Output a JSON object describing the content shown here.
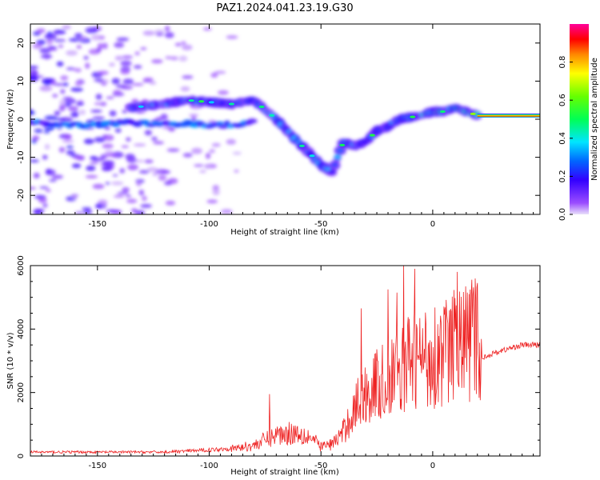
{
  "title": "PAZ1.2024.041.23.19.G30",
  "chart_data": [
    {
      "type": "heatmap",
      "xlabel": "Height of straight line (km)",
      "ylabel": "Frequency (Hz)",
      "xlim": [
        -180,
        48
      ],
      "ylim": [
        -25,
        25
      ],
      "xticks": [
        -150,
        -100,
        -50,
        0
      ],
      "yticks": [
        -20,
        -10,
        0,
        10,
        20
      ],
      "colorbar": {
        "label": "Normalized spectral amplitude",
        "range": [
          0,
          1
        ],
        "ticks": [
          0.0,
          0.2,
          0.4,
          0.6,
          0.8
        ],
        "colormap": "rainbow-violet-to-pink"
      },
      "ridge": {
        "description": "dominant spectral component (frequency vs height)",
        "x": [
          -135,
          -120,
          -110,
          -100,
          -90,
          -80,
          -70,
          -62,
          -55,
          -50,
          -45,
          -40,
          -35,
          -30,
          -25,
          -20,
          -15,
          -10,
          -5,
          0,
          5,
          10,
          15,
          20,
          48
        ],
        "y": [
          3,
          4,
          5,
          4.5,
          4,
          5,
          0,
          -5,
          -9,
          -12,
          -14,
          -6,
          -7,
          -6,
          -3,
          -2,
          0,
          0.5,
          1,
          2,
          2,
          3,
          2,
          1,
          1
        ]
      },
      "secondary_branch": {
        "x": [
          -180,
          -160,
          -140,
          -120,
          -100,
          -90,
          -80
        ],
        "y": [
          -1,
          -1.5,
          -1,
          -1,
          -1.5,
          -1.5,
          -1
        ]
      },
      "tail": {
        "x": [
          20,
          48
        ],
        "freqs": [
          0.5,
          1.5
        ]
      }
    },
    {
      "type": "line",
      "xlabel": "Height of straight line (km)",
      "ylabel": "SNR (10 * v/v)",
      "xlim": [
        -180,
        48
      ],
      "ylim": [
        0,
        6000
      ],
      "xticks": [
        -150,
        -100,
        -50,
        0
      ],
      "yticks": [
        0,
        2000,
        4000,
        6000
      ],
      "series": [
        {
          "color": "#ee2222",
          "envelope_x": [
            -180,
            -150,
            -120,
            -100,
            -90,
            -80,
            -70,
            -60,
            -55,
            -50,
            -45,
            -40,
            -35,
            -30,
            -25,
            -20,
            -15,
            -10,
            -5,
            0,
            5,
            10,
            15,
            20,
            22,
            30,
            40,
            48
          ],
          "envelope_y": [
            150,
            150,
            150,
            230,
            300,
            450,
            900,
            1000,
            800,
            400,
            500,
            1000,
            2000,
            2600,
            3000,
            3100,
            3500,
            4000,
            4100,
            4200,
            4400,
            4600,
            4800,
            5000,
            3100,
            3300,
            3500,
            3500
          ],
          "peaks": [
            {
              "x": -73,
              "y": 1950
            },
            {
              "x": -32,
              "y": 4650
            },
            {
              "x": -20,
              "y": 5250
            },
            {
              "x": -16,
              "y": 5150
            },
            {
              "x": -13,
              "y": 6000
            },
            {
              "x": -8,
              "y": 5900
            },
            {
              "x": 11,
              "y": 5800
            },
            {
              "x": 20,
              "y": 5450
            }
          ]
        }
      ]
    }
  ]
}
